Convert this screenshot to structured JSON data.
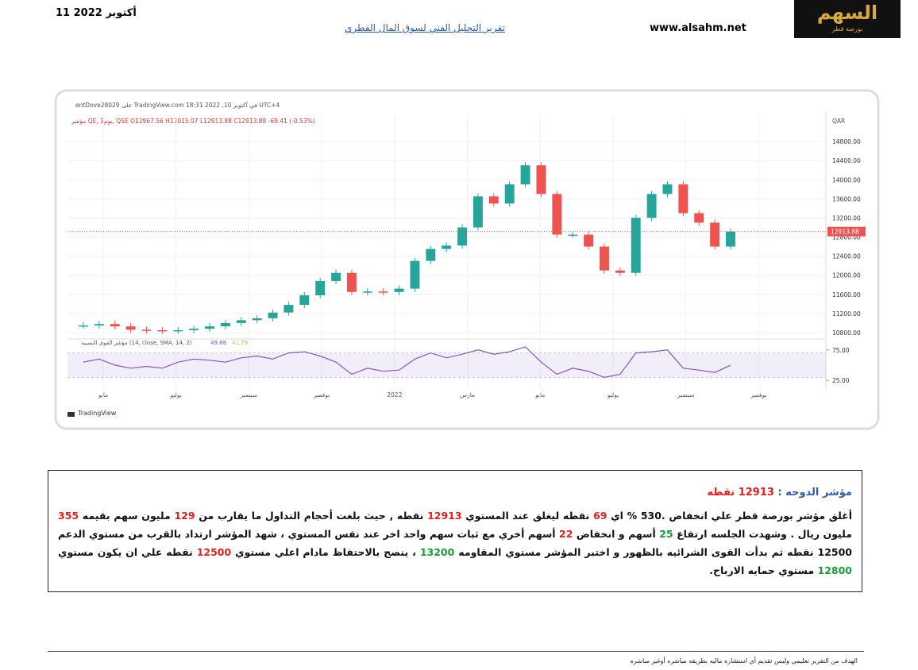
{
  "header": {
    "date": "11 أكتوبر 2022",
    "title": "تقرير التحليل الفني لسوق المال القطري",
    "site": "www.alsahm.net",
    "logo": "السهم",
    "logo_sub": "بورصة قطر"
  },
  "chart_data": {
    "type": "candlestick",
    "source_line": "entDove28029 على TradingView.com 18:31 2022 ,10 في أكتوبر UTC+4",
    "symbol_line": "مؤشر QE, 1يوم, QSE  O12967.56  H13015.07  L12913.88  C12913.88  -69.41 (-0.53%)",
    "currency": "QAR",
    "brand": "TradingView",
    "xlabels": [
      "مايو",
      "يوليو",
      "سبتمبر",
      "نوفمبر",
      "2022",
      "مارس",
      "مايو",
      "يوليو",
      "سبتمبر",
      "نوفمبر"
    ],
    "values": [
      10950,
      10980,
      10930,
      10860,
      10850,
      10840,
      10850,
      10880,
      10930,
      11000,
      11060,
      11100,
      11220,
      11380,
      11580,
      11880,
      12050,
      11650,
      11660,
      11650,
      11720,
      12300,
      12550,
      12620,
      13000,
      13650,
      13500,
      13900,
      14300,
      13700,
      12850,
      12850,
      12600,
      12100,
      12050,
      13200,
      13700,
      13900,
      13300,
      13100,
      12600,
      12913.88
    ],
    "up_color": "#26a69a",
    "down_color": "#ef5350",
    "ylim": [
      10700,
      15350
    ],
    "yticks": [
      {
        "value": 10800,
        "label": "10800.00"
      },
      {
        "value": 11200,
        "label": "11200.00"
      },
      {
        "value": 11600,
        "label": "11600.00"
      },
      {
        "value": 12000,
        "label": "12000.00"
      },
      {
        "value": 12400,
        "label": "12400.00"
      },
      {
        "value": 12800,
        "label": "12800.00"
      },
      {
        "value": 13200,
        "label": "13200.00"
      },
      {
        "value": 13600,
        "label": "13600.00"
      },
      {
        "value": 14000,
        "label": "14000.00"
      },
      {
        "value": 14400,
        "label": "14400.00"
      },
      {
        "value": 14800,
        "label": "14800.00"
      }
    ],
    "grid": true,
    "rsi": {
      "label": "مؤشر القوى النسبية (14, close, SMA, 14, 2)",
      "value_text": "49.88",
      "sma_text": "41.79",
      "color": "#7e57c2",
      "values": [
        55,
        60,
        50,
        45,
        48,
        45,
        55,
        60,
        58,
        55,
        62,
        65,
        60,
        70,
        72,
        65,
        55,
        35,
        45,
        40,
        42,
        60,
        70,
        62,
        68,
        75,
        68,
        72,
        80,
        55,
        35,
        45,
        40,
        30,
        35,
        70,
        72,
        75,
        45,
        42,
        38,
        49.88
      ],
      "band": [
        30,
        70
      ],
      "ylim": [
        11,
        89
      ],
      "yticks": [
        {
          "value": 25,
          "label": "25.00"
        },
        {
          "value": 75,
          "label": "75.00"
        }
      ]
    }
  },
  "report": {
    "title_label": "مؤشر الدوحه :",
    "title_value": "12913 نقطه",
    "segments": [
      {
        "text": "أغلق مؤشر بورصة قطر علي انخفاض .530 % اي "
      },
      {
        "text": "69",
        "color": "#e02020"
      },
      {
        "text": " نقطه ليغلق عند المستوي "
      },
      {
        "text": "12913",
        "color": "#e02020"
      },
      {
        "text": " نقطه , حيث بلغت أحجام التداول ما يقارب من "
      },
      {
        "text": "129",
        "color": "#e02020"
      },
      {
        "text": " مليون سهم بقيمه "
      },
      {
        "text": "355",
        "color": "#e02020"
      },
      {
        "text": " مليون ريال . وشهدت الجلسه ارتفاع "
      },
      {
        "text": "25",
        "color": "#1a9a3a"
      },
      {
        "text": " أسهم و انخفاض "
      },
      {
        "text": "22",
        "color": "#e02020"
      },
      {
        "text": " أسهم أخري مع ثبات سهم واحد اخر عند نفس المستوي ، شهد المؤشر ارتداد بالقرب من مستوي الدعم 12500 نقطه ثم بدأت القوى الشرائيه بالظهور و اختبر المؤشر مستوي المقاومه "
      },
      {
        "text": "13200",
        "color": "#1a9a3a"
      },
      {
        "text": " ، ينصح بالاحتفاظ مادام اعلي مستوي "
      },
      {
        "text": "12500",
        "color": "#e02020"
      },
      {
        "text": " نقطه علي ان يكون مستوي "
      },
      {
        "text": "12800",
        "color": "#1a9a3a"
      },
      {
        "text": " مستوي حمايه الارباح."
      }
    ]
  },
  "footer": "الهدف من التقرير تعليمي وليس تقديم أي استشاره ماليه بطريقه مباشره أوغير مباشره"
}
